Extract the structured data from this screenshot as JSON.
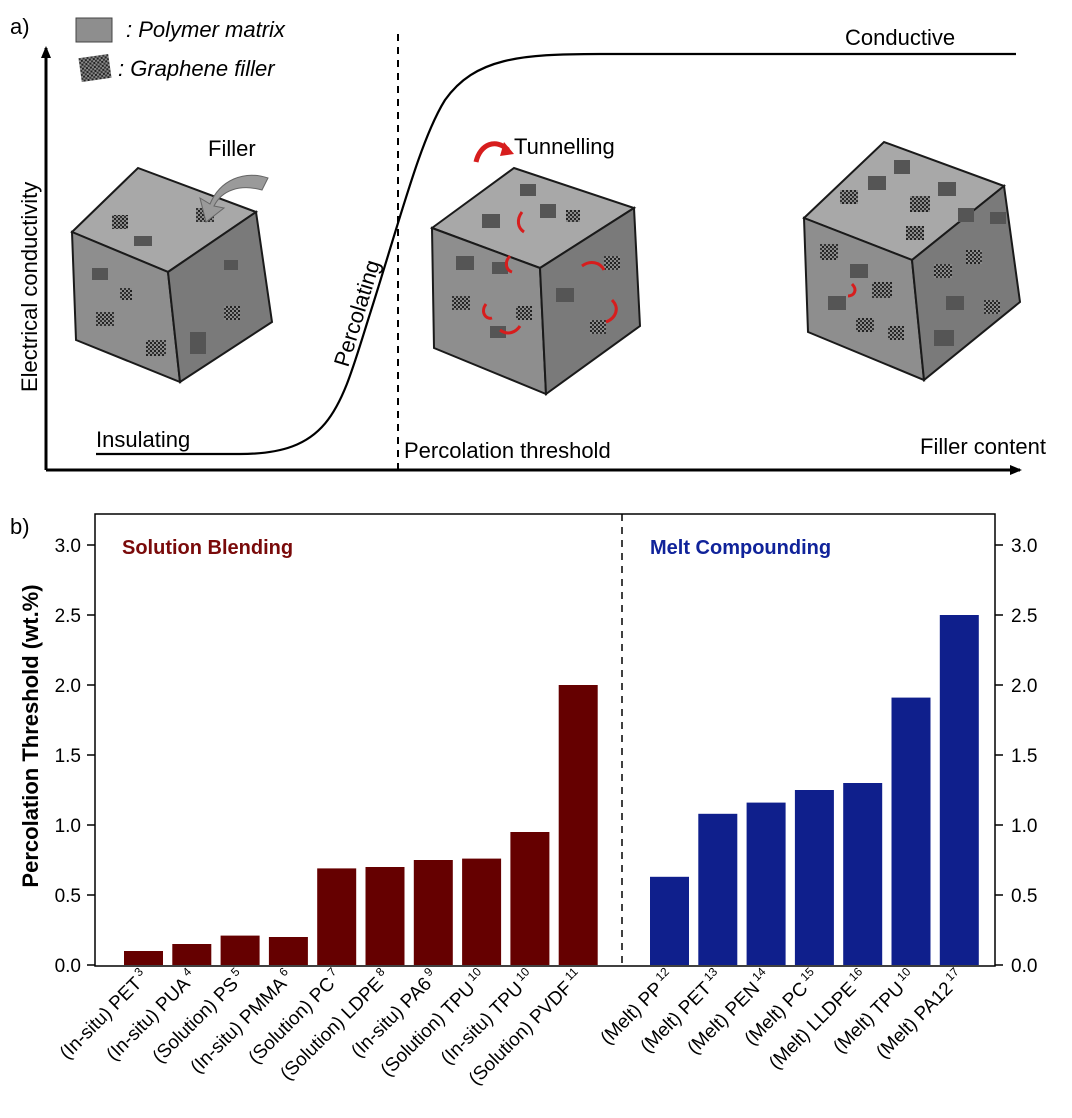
{
  "panel_a": {
    "panel_label": "a)",
    "legend": [
      {
        "key": "polymer",
        "text": ": Polymer matrix"
      },
      {
        "key": "graphene",
        "text": ": Graphene filler"
      }
    ],
    "y_axis_label": "Electrical conductivity",
    "x_axis_label": "Filler content",
    "regions": {
      "insulating": "Insulating",
      "percolating": "Percolating",
      "conductive": "Conductive",
      "threshold": "Percolation threshold"
    },
    "annotations": {
      "filler": "Filler",
      "tunnelling": "Tunnelling"
    },
    "colors": {
      "cube_face": "#8e8e8e",
      "cube_edge": "#1a1a1a",
      "flake": "#555555",
      "tunnel_arrow": "#d71d1d",
      "filler_arrow": "#9a9a9a"
    }
  },
  "chart_data": {
    "type": "bar",
    "panel_label": "b)",
    "ylabel": "Percolation Threshold (wt.%)",
    "ylim": [
      0,
      3.0
    ],
    "yticks": [
      "0.0",
      "0.5",
      "1.0",
      "1.5",
      "2.0",
      "2.5",
      "3.0"
    ],
    "groups": [
      {
        "name": "Solution Blending",
        "color": "#650000",
        "categories": [
          {
            "label": "(In-situ) PET",
            "ref": "3"
          },
          {
            "label": "(In-situ) PUA",
            "ref": "4"
          },
          {
            "label": "(Solution) PS",
            "ref": "5"
          },
          {
            "label": "(In-situ) PMMA",
            "ref": "6"
          },
          {
            "label": "(Solution) PC",
            "ref": "7"
          },
          {
            "label": "(Solution) LDPE",
            "ref": "8"
          },
          {
            "label": "(In-situ) PA6",
            "ref": "9"
          },
          {
            "label": "(Solution) TPU",
            "ref": "10"
          },
          {
            "label": "(In-situ) TPU",
            "ref": "10"
          },
          {
            "label": "(Solution) PVDF",
            "ref": "11"
          }
        ],
        "values": [
          0.1,
          0.15,
          0.21,
          0.2,
          0.69,
          0.7,
          0.75,
          0.76,
          0.95,
          2.0
        ]
      },
      {
        "name": "Melt Compounding",
        "color": "#0f1f8c",
        "categories": [
          {
            "label": "(Melt) PP",
            "ref": "12"
          },
          {
            "label": "(Melt) PET",
            "ref": "13"
          },
          {
            "label": "(Melt) PEN",
            "ref": "14"
          },
          {
            "label": "(Melt) PC",
            "ref": "15"
          },
          {
            "label": "(Melt) LLDPE",
            "ref": "16"
          },
          {
            "label": "(Melt) TPU",
            "ref": "10"
          },
          {
            "label": "(Melt) PA12",
            "ref": "17"
          }
        ],
        "values": [
          0.63,
          1.08,
          1.16,
          1.25,
          1.3,
          1.91,
          2.5
        ]
      }
    ],
    "group_title_colors": {
      "Solution Blending": "#7a0a0a",
      "Melt Compounding": "#10239a"
    },
    "divider": "dashed",
    "grid": false
  }
}
